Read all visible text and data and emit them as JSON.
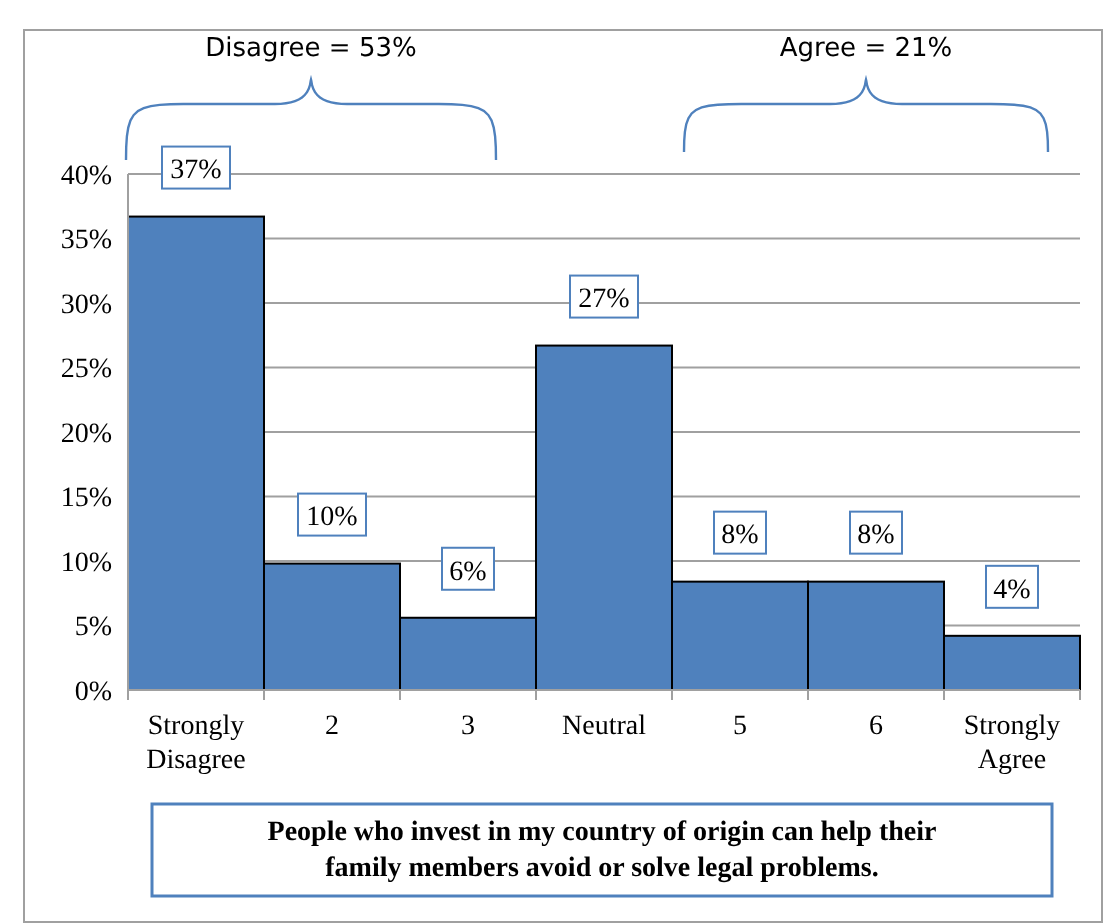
{
  "chart_data": {
    "type": "bar",
    "categories": [
      "Strongly Disagree",
      "2",
      "3",
      "Neutral",
      "5",
      "6",
      "Strongly Agree"
    ],
    "values": [
      36.7,
      9.8,
      5.6,
      26.7,
      8.4,
      8.4,
      4.2
    ],
    "value_labels": [
      "37%",
      "10%",
      "6%",
      "27%",
      "8%",
      "8%",
      "4%"
    ],
    "color": "#4f81bd",
    "ylim": [
      0,
      40
    ],
    "yticks": [
      {
        "value": 0,
        "label": "0%"
      },
      {
        "value": 5,
        "label": "5%"
      },
      {
        "value": 10,
        "label": "10%"
      },
      {
        "value": 15,
        "label": "15%"
      },
      {
        "value": 20,
        "label": "20%"
      },
      {
        "value": 25,
        "label": "25%"
      },
      {
        "value": 30,
        "label": "30%"
      },
      {
        "value": 35,
        "label": "35%"
      },
      {
        "value": 40,
        "label": "40%"
      }
    ],
    "grid": "y",
    "annotations": [
      "Disagree = 53%",
      "Agree = 21%",
      "People who invest in my country of origin can help their family members avoid or solve legal problems."
    ]
  }
}
